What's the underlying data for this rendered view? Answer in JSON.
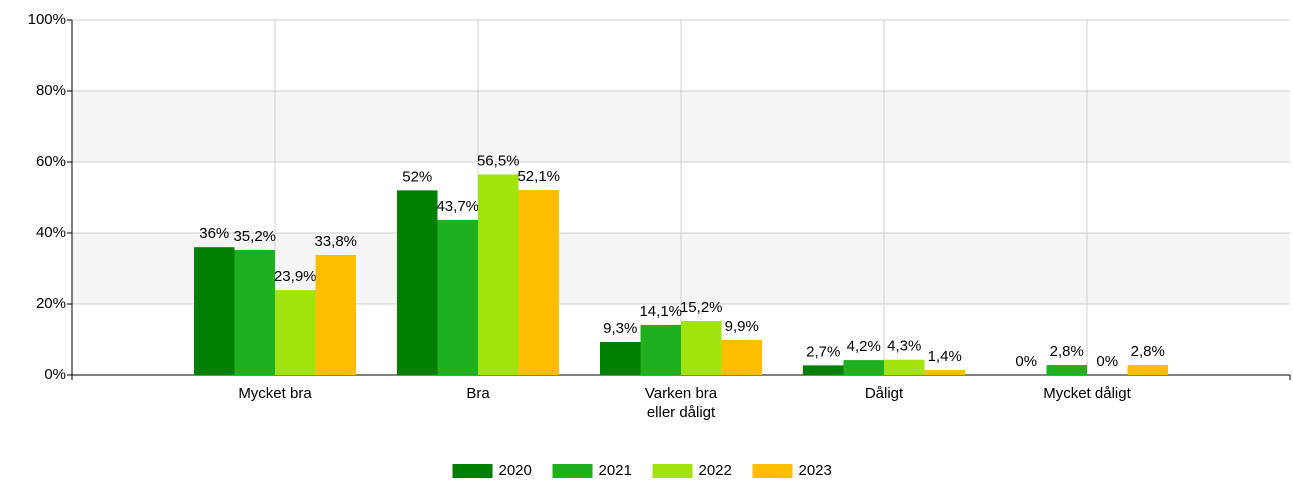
{
  "chart_data": {
    "type": "bar",
    "categories": [
      "Mycket bra",
      "Bra",
      "Varken bra eller dåligt",
      "Dåligt",
      "Mycket dåligt"
    ],
    "series": [
      {
        "name": "2020",
        "color": "#008000",
        "values": [
          36,
          52,
          9.3,
          2.7,
          0
        ],
        "value_labels": [
          "36%",
          "52%",
          "9,3%",
          "2,7%",
          "0%"
        ]
      },
      {
        "name": "2021",
        "color": "#1eb01e",
        "values": [
          35.2,
          43.7,
          14.1,
          4.2,
          2.8
        ],
        "value_labels": [
          "35,2%",
          "43,7%",
          "14,1%",
          "4,2%",
          "2,8%"
        ]
      },
      {
        "name": "2022",
        "color": "#a2e30e",
        "values": [
          23.9,
          56.5,
          15.2,
          4.3,
          0
        ],
        "value_labels": [
          "23,9%",
          "56,5%",
          "15,2%",
          "4,3%",
          "0%"
        ]
      },
      {
        "name": "2023",
        "color": "#ffbf00",
        "values": [
          33.8,
          52.1,
          9.9,
          1.4,
          2.8
        ],
        "value_labels": [
          "33,8%",
          "52,1%",
          "9,9%",
          "1,4%",
          "2,8%"
        ]
      }
    ],
    "ylim": [
      0,
      100
    ],
    "yticks": [
      {
        "value": 0,
        "label": "0%"
      },
      {
        "value": 20,
        "label": "20%"
      },
      {
        "value": 40,
        "label": "40%"
      },
      {
        "value": 60,
        "label": "60%"
      },
      {
        "value": 80,
        "label": "80%"
      },
      {
        "value": 100,
        "label": "100%"
      }
    ],
    "grid": true
  }
}
